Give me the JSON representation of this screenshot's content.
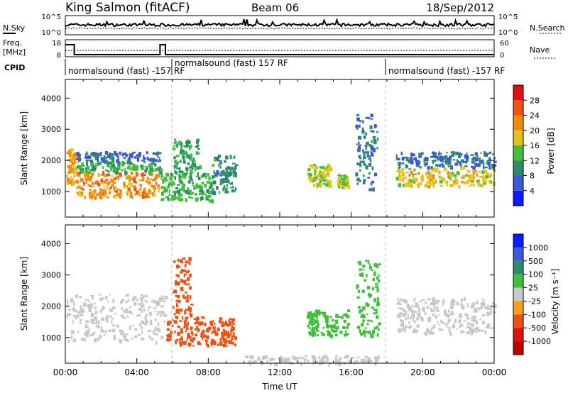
{
  "header": {
    "station": "King Salmon (fitACF)",
    "beam": "Beam 06",
    "date": "18/Sep/2012"
  },
  "nsky_panel": {
    "left_label": "N.Sky",
    "left_ticks": [
      "10^5",
      "10^0"
    ],
    "right_label": "N.Search",
    "right_ticks": [
      "10^5",
      "10^0"
    ]
  },
  "freq_panel": {
    "left_label_line1": "Freq.",
    "left_label_line2": "[MHz]",
    "left_ticks": [
      "18",
      "8"
    ],
    "right_label": "Nave",
    "right_ticks": [
      "60",
      "0"
    ]
  },
  "cpid": {
    "label": "CPID",
    "segments": [
      {
        "text": "normalsound (fast) -157 RF",
        "start_hour": 0.0
      },
      {
        "text": "normalsound (fast) 157 RF",
        "start_hour": 6.0
      },
      {
        "text": "normalsound (fast) -157 RF",
        "start_hour": 18.0
      }
    ]
  },
  "colors": {
    "power": [
      "#0a1cff",
      "#3c58d8",
      "#2c8a6a",
      "#3fbf3a",
      "#e8c01a",
      "#f08a10",
      "#f05010",
      "#e01010"
    ],
    "velocity": [
      "#e01010",
      "#f05010",
      "#f8a020",
      "#c8c8c8",
      "#c8c8c8",
      "#3fbf3a",
      "#2c8a6a",
      "#0a1cff"
    ]
  },
  "chart_data": [
    {
      "type": "heatmap",
      "name": "power",
      "xlabel": "",
      "ylabel": "Slant Range [km]",
      "x_range_hours": [
        0,
        24
      ],
      "ylim": [
        180,
        4600
      ],
      "yticks": [
        "1000",
        "2000",
        "3000",
        "4000"
      ],
      "colorbar": {
        "label": "Power [dB]",
        "ticks": [
          "4",
          "8",
          "12",
          "16",
          "20",
          "24",
          "28"
        ],
        "range": [
          0,
          32
        ]
      },
      "features": [
        {
          "t0": 0.05,
          "t1": 0.6,
          "r0": 1300,
          "r1": 2400,
          "level": 20
        },
        {
          "t0": 0.6,
          "t1": 5.3,
          "r0": 850,
          "r1": 1650,
          "level": 22
        },
        {
          "t0": 0.6,
          "t1": 5.3,
          "r0": 1650,
          "r1": 2000,
          "level": 12
        },
        {
          "t0": 0.6,
          "t1": 5.3,
          "r0": 2000,
          "r1": 2300,
          "level": 7
        },
        {
          "t0": 5.3,
          "t1": 8.2,
          "r0": 750,
          "r1": 1600,
          "level": 13
        },
        {
          "t0": 6.0,
          "t1": 7.5,
          "r0": 1600,
          "r1": 2700,
          "level": 11
        },
        {
          "t0": 8.2,
          "t1": 9.5,
          "r0": 1000,
          "r1": 2200,
          "level": 10
        },
        {
          "t0": 13.5,
          "t1": 14.8,
          "r0": 1200,
          "r1": 1900,
          "level": 17
        },
        {
          "t0": 15.2,
          "t1": 15.8,
          "r0": 1150,
          "r1": 1600,
          "level": 15
        },
        {
          "t0": 16.2,
          "t1": 17.5,
          "r0": 1100,
          "r1": 3500,
          "level": 9
        },
        {
          "t0": 18.5,
          "t1": 24.0,
          "r0": 1200,
          "r1": 1800,
          "level": 18
        },
        {
          "t0": 18.5,
          "t1": 24.0,
          "r0": 1800,
          "r1": 2300,
          "level": 8
        }
      ]
    },
    {
      "type": "heatmap",
      "name": "velocity",
      "xlabel": "Time UT",
      "ylabel": "Slant Range [km]",
      "x_range_hours": [
        0,
        24
      ],
      "xticks": [
        "00:00",
        "04:00",
        "08:00",
        "12:00",
        "16:00",
        "20:00",
        "00:00"
      ],
      "ylim": [
        180,
        4600
      ],
      "yticks": [
        "1000",
        "2000",
        "3000",
        "4000"
      ],
      "colorbar": {
        "label": "Velocity [m s⁻¹]",
        "ticks": [
          "1000",
          "500",
          "100",
          "25",
          "-25",
          "-100",
          "-500",
          "-1000"
        ]
      },
      "features": [
        {
          "t0": 0.05,
          "t1": 5.6,
          "r0": 900,
          "r1": 2400,
          "level": 0
        },
        {
          "t0": 5.6,
          "t1": 9.5,
          "r0": 750,
          "r1": 1700,
          "level": -400
        },
        {
          "t0": 6.0,
          "t1": 7.0,
          "r0": 1700,
          "r1": 3600,
          "level": -200
        },
        {
          "t0": 13.5,
          "t1": 15.8,
          "r0": 1100,
          "r1": 1900,
          "level": 300
        },
        {
          "t0": 16.2,
          "t1": 17.5,
          "r0": 1100,
          "r1": 3500,
          "level": 400
        },
        {
          "t0": 18.5,
          "t1": 24.0,
          "r0": 1150,
          "r1": 2300,
          "level": 0
        },
        {
          "t0": 10.0,
          "t1": 17.5,
          "r0": 200,
          "r1": 450,
          "level": 60
        }
      ]
    }
  ]
}
